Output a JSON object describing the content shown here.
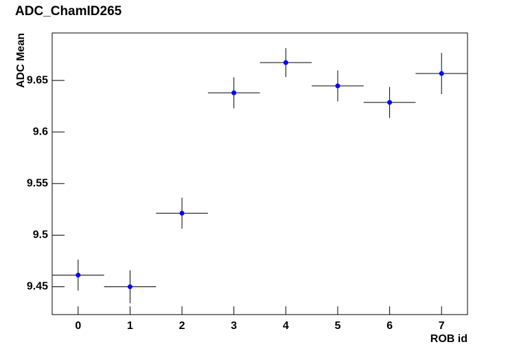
{
  "chart_data": {
    "type": "errorbar",
    "title": "ADC_ChamID265",
    "x_label": "ROB id",
    "y_label": "ADC Mean",
    "x": [
      0,
      1,
      2,
      3,
      4,
      5,
      6,
      7
    ],
    "series": [
      {
        "color": "#0000ff",
        "values": [
          9.4613,
          9.45,
          9.5213,
          9.638,
          9.6673,
          9.6447,
          9.6287,
          9.6567
        ],
        "y_errors": [
          0.015,
          0.016,
          0.015,
          0.015,
          0.014,
          0.015,
          0.015,
          0.02
        ],
        "x_errors": [
          0.5,
          0.5,
          0.5,
          0.5,
          0.5,
          0.5,
          0.5,
          0.5
        ]
      }
    ],
    "xlim": [
      -0.5,
      7.5
    ],
    "xticks": [
      0,
      1,
      2,
      3,
      4,
      5,
      6,
      7
    ],
    "ylim": [
      9.423,
      9.696
    ],
    "yticks": [
      9.45,
      9.5,
      9.55,
      9.6,
      9.65
    ]
  }
}
